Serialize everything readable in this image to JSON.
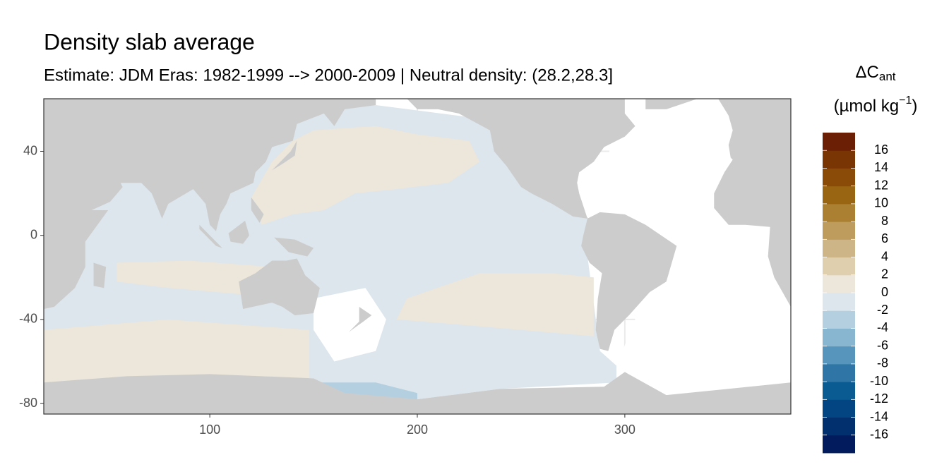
{
  "chart_data": {
    "type": "map",
    "title": "Density slab average",
    "subtitle": "Estimate: JDM Eras: 1982-1999 --> 2000-2009 | Neutral density: (28.2,28.3]",
    "xlim": [
      20,
      380
    ],
    "ylim": [
      -85,
      65
    ],
    "xticks": [
      100,
      200,
      300
    ],
    "yticks": [
      -80,
      -40,
      0,
      40
    ],
    "grid": true,
    "land_color": "#cccccc",
    "legend": {
      "title": [
        "ΔC",
        "ant",
        "(µmol kg",
        "−1",
        ")"
      ],
      "lim": [
        -18,
        18
      ],
      "ticks": [
        -16,
        -14,
        -12,
        -10,
        -8,
        -6,
        -4,
        -2,
        0,
        2,
        4,
        6,
        8,
        10,
        12,
        14,
        16
      ],
      "colors": [
        "#011b5c",
        "#022f6d",
        "#024582",
        "#0b5b93",
        "#2f76a6",
        "#5895bc",
        "#88b5cf",
        "#b4d0e0",
        "#dce6ec",
        "#ede6da",
        "#e0cfae",
        "#ceb587",
        "#bd9c5d",
        "#ac8032",
        "#9a6512",
        "#8a4a08",
        "#7a3505",
        "#6b1f05"
      ]
    }
  }
}
